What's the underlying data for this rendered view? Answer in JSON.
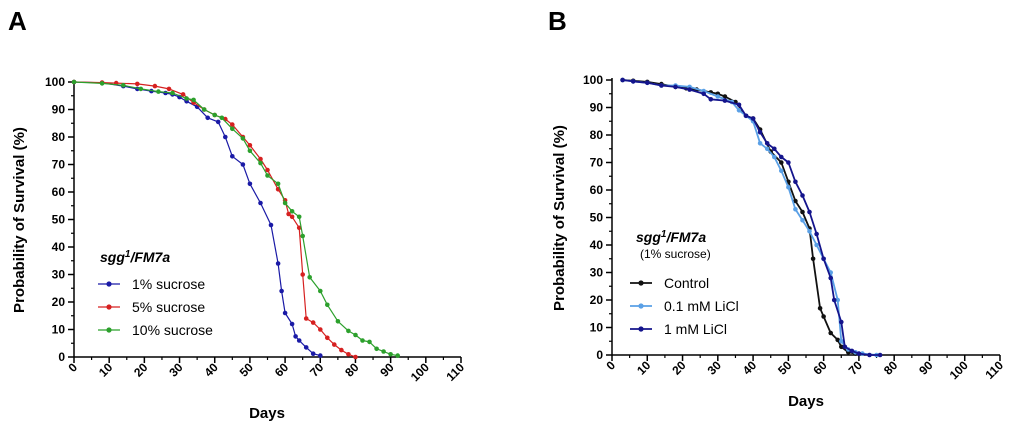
{
  "chart_data": [
    {
      "panel_label": "A",
      "type": "line",
      "xlabel": "Days",
      "ylabel": "Probability of Survival (%)",
      "xlim": [
        0,
        110
      ],
      "ylim": [
        0,
        100
      ],
      "xticks": [
        0,
        10,
        20,
        30,
        40,
        50,
        60,
        70,
        80,
        90,
        100,
        110
      ],
      "yticks": [
        0,
        10,
        20,
        30,
        40,
        50,
        60,
        70,
        80,
        90,
        100
      ],
      "legend_title_base": "sgg",
      "legend_title_sup": "1",
      "legend_title_rest": "/FM7a",
      "legend_subtitle": "",
      "series": [
        {
          "name": "1% sucrose",
          "color": "#1a1aa6",
          "points": [
            [
              0,
              100
            ],
            [
              8,
              99.7
            ],
            [
              14,
              98.5
            ],
            [
              18,
              97.5
            ],
            [
              22,
              96.7
            ],
            [
              26,
              96
            ],
            [
              28,
              95.5
            ],
            [
              30,
              94.5
            ],
            [
              32,
              93
            ],
            [
              35,
              91
            ],
            [
              38,
              87
            ],
            [
              41,
              85.5
            ],
            [
              43,
              80
            ],
            [
              45,
              73
            ],
            [
              48,
              70
            ],
            [
              50,
              63
            ],
            [
              53,
              56
            ],
            [
              56,
              48
            ],
            [
              58,
              34
            ],
            [
              59,
              24
            ],
            [
              60,
              16
            ],
            [
              62,
              12
            ],
            [
              63,
              7.5
            ],
            [
              64,
              6
            ],
            [
              66,
              3.5
            ],
            [
              68,
              1.2
            ],
            [
              70,
              0.5
            ]
          ]
        },
        {
          "name": "5% sucrose",
          "color": "#d62020",
          "points": [
            [
              0,
              100
            ],
            [
              8,
              99.8
            ],
            [
              12,
              99.6
            ],
            [
              18,
              99.3
            ],
            [
              23,
              98.5
            ],
            [
              27,
              97.5
            ],
            [
              31,
              95.5
            ],
            [
              34,
              92.5
            ],
            [
              37,
              90
            ],
            [
              40,
              88
            ],
            [
              43,
              86.5
            ],
            [
              45,
              84.5
            ],
            [
              48,
              80
            ],
            [
              50,
              77
            ],
            [
              53,
              72
            ],
            [
              55,
              68
            ],
            [
              58,
              61
            ],
            [
              60,
              57
            ],
            [
              61,
              52
            ],
            [
              62,
              51
            ],
            [
              64,
              47
            ],
            [
              65,
              30
            ],
            [
              66,
              14
            ],
            [
              68,
              12.5
            ],
            [
              70,
              10
            ],
            [
              72,
              7
            ],
            [
              74,
              4.5
            ],
            [
              76,
              2.5
            ],
            [
              78,
              1
            ],
            [
              80,
              0
            ]
          ]
        },
        {
          "name": "10% sucrose",
          "color": "#2ca02c",
          "points": [
            [
              0,
              100
            ],
            [
              8,
              99.5
            ],
            [
              14,
              98.8
            ],
            [
              19,
              97.5
            ],
            [
              24,
              96.5
            ],
            [
              28,
              96
            ],
            [
              32,
              94
            ],
            [
              34,
              93.5
            ],
            [
              37,
              90
            ],
            [
              40,
              88
            ],
            [
              42,
              87
            ],
            [
              45,
              83
            ],
            [
              48,
              79.5
            ],
            [
              50,
              75
            ],
            [
              53,
              70.5
            ],
            [
              55,
              66
            ],
            [
              58,
              63
            ],
            [
              60,
              56
            ],
            [
              62,
              53
            ],
            [
              64,
              51
            ],
            [
              65,
              44
            ],
            [
              67,
              29
            ],
            [
              70,
              24
            ],
            [
              72,
              19
            ],
            [
              75,
              13
            ],
            [
              78,
              9.5
            ],
            [
              80,
              8
            ],
            [
              82,
              6
            ],
            [
              84,
              5.5
            ],
            [
              86,
              3
            ],
            [
              88,
              2
            ],
            [
              90,
              1
            ],
            [
              92,
              0.5
            ]
          ]
        }
      ]
    },
    {
      "panel_label": "B",
      "type": "line",
      "xlabel": "Days",
      "ylabel": "Probability of Survival (%)",
      "xlim": [
        0,
        110
      ],
      "ylim": [
        0,
        100
      ],
      "xticks": [
        0,
        10,
        20,
        30,
        40,
        50,
        60,
        70,
        80,
        90,
        100,
        110
      ],
      "yticks": [
        0,
        10,
        20,
        30,
        40,
        50,
        60,
        70,
        80,
        90,
        100
      ],
      "legend_title_base": "sgg",
      "legend_title_sup": "1",
      "legend_title_rest": "/FM7a",
      "legend_subtitle": "(1% sucrose)",
      "series": [
        {
          "name": "Control",
          "color": "#111111",
          "points": [
            [
              3,
              100
            ],
            [
              6,
              99.7
            ],
            [
              10,
              99.3
            ],
            [
              14,
              98.5
            ],
            [
              18,
              97.5
            ],
            [
              21,
              97
            ],
            [
              24,
              96.5
            ],
            [
              28,
              95.5
            ],
            [
              30,
              95
            ],
            [
              32,
              94
            ],
            [
              35,
              92
            ],
            [
              38,
              87
            ],
            [
              40,
              86
            ],
            [
              42,
              82
            ],
            [
              45,
              74
            ],
            [
              48,
              70
            ],
            [
              50,
              63
            ],
            [
              52,
              56
            ],
            [
              54,
              52
            ],
            [
              56,
              46
            ],
            [
              57,
              35
            ],
            [
              59,
              17
            ],
            [
              60,
              14
            ],
            [
              62,
              8
            ],
            [
              64,
              5.5
            ],
            [
              65,
              3
            ],
            [
              67,
              1
            ],
            [
              69,
              0.5
            ]
          ]
        },
        {
          "name": "0.1 mM LiCl",
          "color": "#5aa0e6",
          "points": [
            [
              3,
              100
            ],
            [
              6,
              99.5
            ],
            [
              10,
              99
            ],
            [
              14,
              98
            ],
            [
              18,
              98
            ],
            [
              22,
              97.5
            ],
            [
              26,
              96
            ],
            [
              30,
              94
            ],
            [
              34,
              92
            ],
            [
              36,
              89
            ],
            [
              38,
              87
            ],
            [
              40,
              85
            ],
            [
              42,
              77
            ],
            [
              44,
              75
            ],
            [
              46,
              72
            ],
            [
              48,
              67
            ],
            [
              50,
              61
            ],
            [
              52,
              53
            ],
            [
              54,
              49
            ],
            [
              56,
              45
            ],
            [
              58,
              40
            ],
            [
              60,
              35
            ],
            [
              62,
              30
            ],
            [
              64,
              20
            ],
            [
              65,
              5
            ],
            [
              67,
              2
            ],
            [
              69,
              1
            ],
            [
              71,
              0.5
            ],
            [
              75,
              0
            ]
          ]
        },
        {
          "name": "1 mM LiCl",
          "color": "#14148c",
          "points": [
            [
              3,
              100
            ],
            [
              6,
              99.5
            ],
            [
              10,
              99
            ],
            [
              14,
              98
            ],
            [
              18,
              97.5
            ],
            [
              22,
              96.5
            ],
            [
              26,
              95
            ],
            [
              28,
              93
            ],
            [
              32,
              92.5
            ],
            [
              36,
              91
            ],
            [
              38,
              87
            ],
            [
              40,
              86
            ],
            [
              42,
              81
            ],
            [
              44,
              77
            ],
            [
              46,
              75
            ],
            [
              48,
              72
            ],
            [
              50,
              70
            ],
            [
              52,
              63
            ],
            [
              54,
              58
            ],
            [
              56,
              52
            ],
            [
              58,
              44
            ],
            [
              60,
              35
            ],
            [
              62,
              28
            ],
            [
              63,
              20
            ],
            [
              65,
              12
            ],
            [
              66,
              3
            ],
            [
              68,
              1.5
            ],
            [
              70,
              0.5
            ],
            [
              73,
              0
            ],
            [
              76,
              0
            ]
          ]
        }
      ]
    }
  ]
}
